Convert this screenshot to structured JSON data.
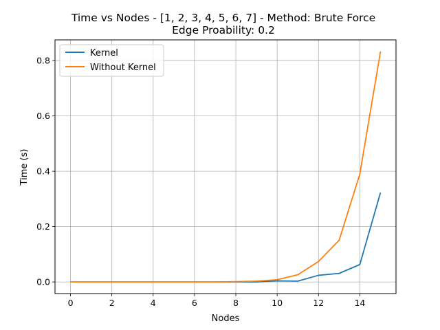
{
  "chart_data": {
    "type": "line",
    "title": "Time vs Nodes - [1, 2, 3, 4, 5, 6, 7] - Method: Brute Force",
    "subtitle": "Edge Proability: 0.2",
    "xlabel": "Nodes",
    "ylabel": "Time (s)",
    "xlim": [
      -0.75,
      15.75
    ],
    "ylim": [
      -0.042,
      0.875
    ],
    "xticks": [
      0,
      2,
      4,
      6,
      8,
      10,
      12,
      14
    ],
    "yticks": [
      0.0,
      0.2,
      0.4,
      0.6,
      0.8
    ],
    "xtick_labels": [
      "0",
      "2",
      "4",
      "6",
      "8",
      "10",
      "12",
      "14"
    ],
    "ytick_labels": [
      "0.0",
      "0.2",
      "0.4",
      "0.6",
      "0.8"
    ],
    "grid": true,
    "legend_position": "top-left",
    "x": [
      0,
      1,
      2,
      3,
      4,
      5,
      6,
      7,
      8,
      9,
      10,
      11,
      12,
      13,
      14,
      15
    ],
    "series": [
      {
        "name": "Kernel",
        "color": "#1f77b4",
        "values": [
          0.0,
          0.0,
          0.0,
          0.0,
          0.0,
          0.0,
          0.0,
          0.0,
          0.0,
          0.0,
          0.004,
          0.003,
          0.024,
          0.031,
          0.063,
          0.323
        ]
      },
      {
        "name": "Without Kernel",
        "color": "#ff7f0e",
        "values": [
          0.0,
          0.0,
          0.0,
          0.0,
          0.0,
          0.0,
          0.0,
          0.0,
          0.001,
          0.003,
          0.008,
          0.026,
          0.074,
          0.151,
          0.39,
          0.833
        ]
      }
    ]
  }
}
